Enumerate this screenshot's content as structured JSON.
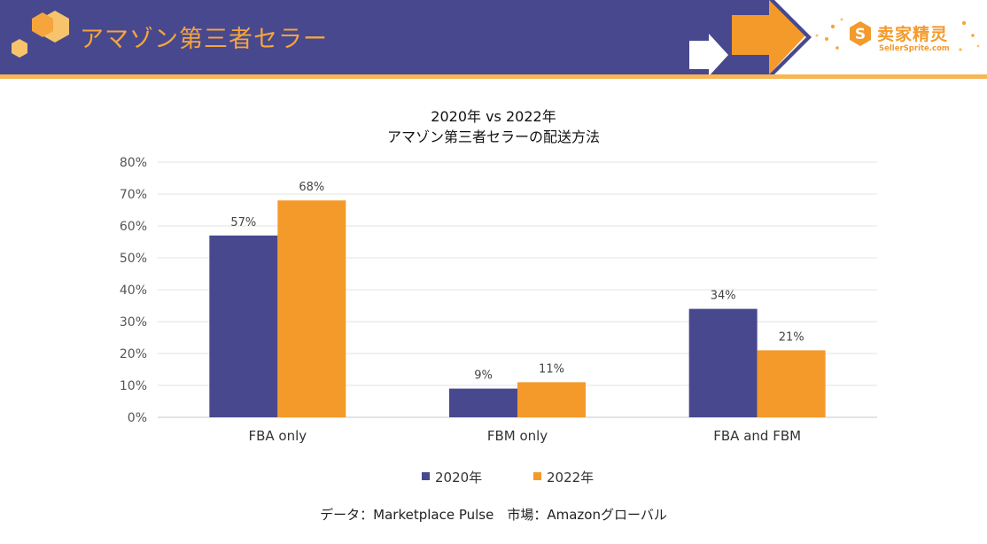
{
  "header": {
    "title": "アマゾン第三者セラー",
    "brand_name": "卖家精灵",
    "brand_url": "SellerSprite.com"
  },
  "colors": {
    "header_band": "#48488e",
    "header_accent": "#f7b757",
    "series_2020": "#48488e",
    "series_2022": "#f39a2b"
  },
  "chart_data": {
    "type": "bar",
    "title": "2020年 vs 2022年",
    "subtitle": "アマゾン第三者セラーの配送方法",
    "categories": [
      "FBA only",
      "FBM only",
      "FBA and FBM"
    ],
    "series": [
      {
        "name": "2020年",
        "values": [
          57,
          9,
          34
        ],
        "labels": [
          "57%",
          "9%",
          "34%"
        ]
      },
      {
        "name": "2022年",
        "values": [
          68,
          11,
          21
        ],
        "labels": [
          "68%",
          "11%",
          "21%"
        ]
      }
    ],
    "ylim": [
      0,
      80
    ],
    "yticks": [
      0,
      10,
      20,
      30,
      40,
      50,
      60,
      70,
      80
    ],
    "ytick_labels": [
      "0%",
      "10%",
      "20%",
      "30%",
      "40%",
      "50%",
      "60%",
      "70%",
      "80%"
    ],
    "grid": true,
    "legend_position": "bottom"
  },
  "source": "データ：Marketplace Pulse　市場：Amazonグローバル"
}
